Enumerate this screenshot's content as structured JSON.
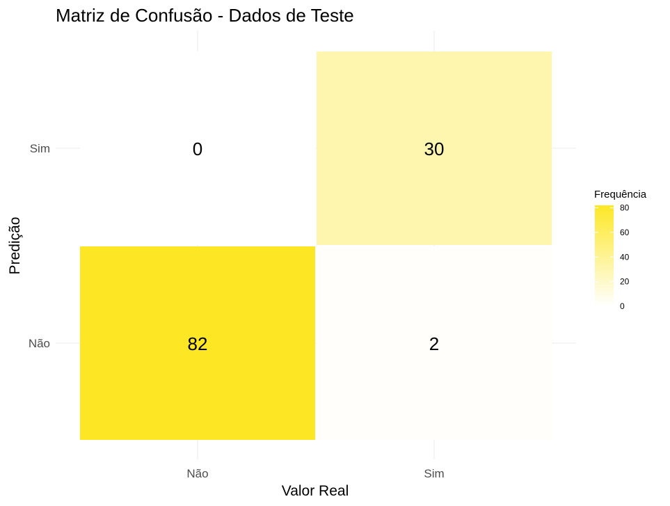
{
  "chart_data": {
    "type": "heatmap",
    "title": "Matriz de Confusão - Dados de Teste",
    "xlabel": "Valor Real",
    "ylabel": "Predição",
    "x_categories": [
      "Não",
      "Sim"
    ],
    "y_categories": [
      "Não",
      "Sim"
    ],
    "cells": [
      {
        "x": "Não",
        "y": "Sim",
        "value": 0
      },
      {
        "x": "Sim",
        "y": "Sim",
        "value": 30
      },
      {
        "x": "Não",
        "y": "Não",
        "value": 82
      },
      {
        "x": "Sim",
        "y": "Não",
        "value": 2
      }
    ],
    "legend": {
      "title": "Frequência",
      "ticks": [
        0,
        20,
        40,
        60,
        80
      ],
      "range": [
        0,
        82
      ],
      "placement": "right"
    },
    "color_low": "#ffffff",
    "color_high": "#fde725",
    "grid": true
  }
}
